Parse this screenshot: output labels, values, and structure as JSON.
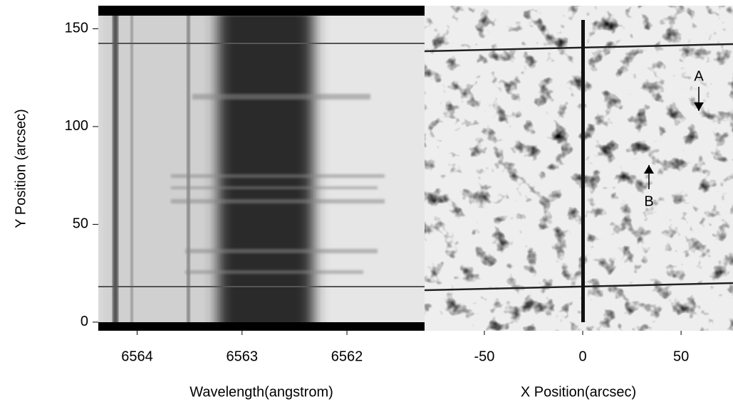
{
  "chart_data": [
    {
      "type": "image",
      "xlabel": "Wavelength(angstrom)",
      "ylabel": "Y Position (arcsec)",
      "xlim": [
        6564.37,
        6561.26
      ],
      "xticks": [
        6564,
        6563,
        6562
      ],
      "ylim": [
        -4.4,
        161.8
      ],
      "yticks": [
        0,
        50,
        100,
        150
      ]
    },
    {
      "type": "image",
      "xlabel": "X Position(arcsec)",
      "xlim": [
        -80.4,
        76.4
      ],
      "xticks": [
        -50,
        0,
        50
      ],
      "ylim": [
        -4.4,
        161.8
      ],
      "annotations": [
        "A",
        "B"
      ]
    }
  ]
}
